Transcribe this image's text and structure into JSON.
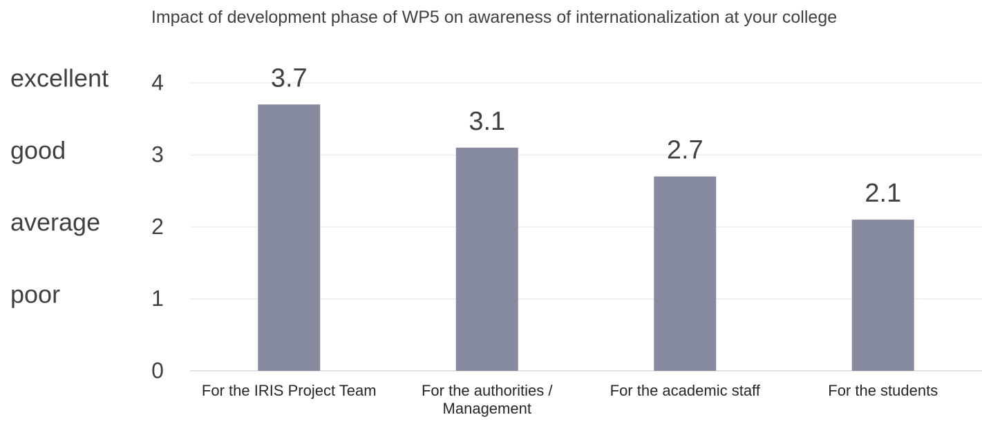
{
  "chart_data": {
    "type": "bar",
    "title": "Impact of development phase of WP5 on awareness of internationalization at your college",
    "categories": [
      "For the IRIS Project Team",
      "For the authorities / Management",
      "For the academic staff",
      "For the students"
    ],
    "values": [
      3.7,
      3.1,
      2.7,
      2.1
    ],
    "color": "#868ba0",
    "ylim": [
      0,
      4
    ],
    "yticks": [
      0,
      1,
      2,
      3,
      4
    ],
    "rating_labels": [
      {
        "value": 4,
        "label": "excellent"
      },
      {
        "value": 3,
        "label": "good"
      },
      {
        "value": 2,
        "label": "average"
      },
      {
        "value": 1,
        "label": "poor"
      }
    ],
    "grid": true
  }
}
